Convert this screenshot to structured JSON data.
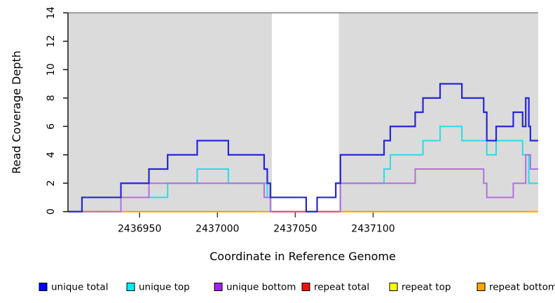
{
  "figure": {
    "ylabel": "Read Coverage Depth",
    "xlabel": "Coordinate in Reference Genome"
  },
  "chart_data": {
    "type": "line",
    "subtype": "step-coverage-plot",
    "title": "",
    "xlabel": "Coordinate in Reference Genome",
    "ylabel": "Read Coverage Depth",
    "x_range": [
      2436904,
      2437206
    ],
    "y_range": [
      0,
      14
    ],
    "x_ticks": [
      2436950,
      2437000,
      2437050,
      2437100
    ],
    "y_ticks": [
      0,
      2,
      4,
      6,
      8,
      10,
      12,
      14
    ],
    "grid": "off",
    "legend_position": "bottom",
    "target_regions": {
      "fill_color": "#dbdbdb",
      "border_color": "#9a9a9a",
      "top_value": 14,
      "regions": [
        [
          2436904,
          2437035
        ],
        [
          2437078,
          2437206
        ]
      ]
    },
    "legend": [
      {
        "label": "unique total",
        "color": "#0000ee"
      },
      {
        "label": "unique top",
        "color": "#00eef2"
      },
      {
        "label": "unique bottom",
        "color": "#a020f0"
      },
      {
        "label": "repeat total",
        "color": "#ee1111"
      },
      {
        "label": "repeat top",
        "color": "#ffff00"
      },
      {
        "label": "repeat bottom",
        "color": "#ffa500"
      }
    ],
    "series": [
      {
        "name": "repeat top",
        "color": "#ffe400",
        "width": 2,
        "parts": [
          {
            "steps": [
              [
                2436904,
                0
              ]
            ],
            "end": 2437206
          }
        ]
      },
      {
        "name": "repeat bottom",
        "color": "#ffa318",
        "width": 2.2,
        "parts": [
          {
            "steps": [
              [
                2436904,
                0
              ]
            ],
            "end": 2437206
          }
        ]
      },
      {
        "name": "unique top",
        "color": "#2adbe8",
        "width": 2,
        "parts": [
          {
            "steps": [
              [
                2436904,
                0
              ],
              [
                2436913,
                1
              ],
              [
                2436968,
                2
              ],
              [
                2436987,
                3
              ],
              [
                2437007,
                2
              ],
              [
                2437032,
                1
              ],
              [
                2437057,
                0
              ],
              [
                2437064,
                1
              ],
              [
                2437076,
                2
              ],
              [
                2437107,
                3
              ],
              [
                2437111,
                4
              ],
              [
                2437132,
                5
              ],
              [
                2437143,
                6
              ],
              [
                2437157,
                5
              ],
              [
                2437173,
                4
              ],
              [
                2437179,
                5
              ],
              [
                2437196,
                4
              ],
              [
                2437200,
                2
              ]
            ],
            "end": 2437206
          }
        ]
      },
      {
        "name": "unique bottom",
        "color": "#b26fe0",
        "width": 2,
        "parts": [
          {
            "steps": [
              [
                2436904,
                0
              ],
              [
                2436938,
                1
              ],
              [
                2436956,
                2
              ],
              [
                2437030,
                1
              ],
              [
                2437034,
                0
              ],
              [
                2437079,
                2
              ],
              [
                2437127,
                3
              ],
              [
                2437171,
                2
              ],
              [
                2437173,
                1
              ],
              [
                2437190,
                2
              ],
              [
                2437198,
                4
              ],
              [
                2437201,
                3
              ]
            ],
            "end": 2437206
          }
        ]
      },
      {
        "name": "repeat total",
        "color": "#cc5d7c",
        "width": 2,
        "parts": [
          {
            "steps": [
              [
                2437035,
                0
              ]
            ],
            "end": 2437078
          }
        ]
      },
      {
        "name": "unique total",
        "color": "#2626d9",
        "width": 2.2,
        "parts": [
          {
            "steps": [
              [
                2436904,
                0
              ],
              [
                2436913,
                1
              ],
              [
                2436938,
                2
              ],
              [
                2436956,
                3
              ],
              [
                2436968,
                4
              ],
              [
                2436987,
                5
              ],
              [
                2437007,
                4
              ],
              [
                2437030,
                3
              ],
              [
                2437032,
                2
              ],
              [
                2437034,
                1
              ],
              [
                2437057,
                0
              ],
              [
                2437064,
                1
              ],
              [
                2437076,
                2
              ],
              [
                2437079,
                4
              ],
              [
                2437107,
                5
              ],
              [
                2437111,
                6
              ],
              [
                2437127,
                7
              ],
              [
                2437132,
                8
              ],
              [
                2437143,
                9
              ],
              [
                2437157,
                8
              ],
              [
                2437171,
                7
              ],
              [
                2437173,
                5
              ],
              [
                2437179,
                6
              ],
              [
                2437190,
                7
              ],
              [
                2437196,
                6
              ],
              [
                2437198,
                8
              ],
              [
                2437200,
                6
              ],
              [
                2437201,
                5
              ]
            ],
            "end": 2437206
          }
        ]
      }
    ]
  }
}
